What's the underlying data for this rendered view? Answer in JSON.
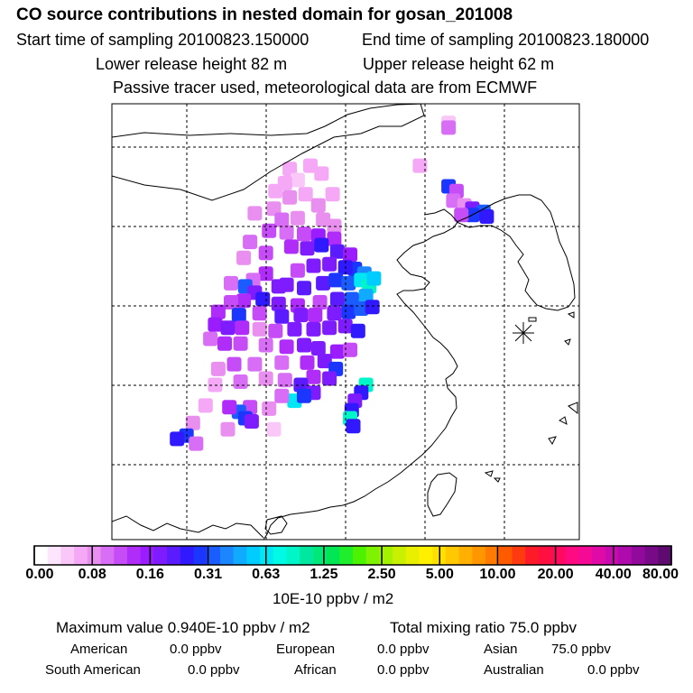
{
  "header": {
    "title": "CO  source contributions in nested domain for gosan_201008",
    "start_label": "Start time of sampling 20100823.150000",
    "end_label": "End time of sampling 20100823.180000",
    "lower_label": "Lower release height   82 m",
    "upper_label": "Upper release height   62 m",
    "subtitle": "Passive tracer used, meteorological data are from ECMWF"
  },
  "chart_data": {
    "type": "heatmap",
    "title": "CO  source contributions in nested domain for gosan_201008",
    "colorbar": {
      "unit": "10E-10 ppbv / m2",
      "tick_labels": [
        "0.00",
        "0.08",
        "0.16",
        "0.31",
        "0.63",
        "1.25",
        "2.50",
        "5.00",
        "10.00",
        "20.00",
        "40.00",
        "80.00"
      ],
      "colors": [
        "#ffffff",
        "#fde6fd",
        "#f9c8f9",
        "#f5a8f5",
        "#e88ff0",
        "#d76ef5",
        "#c64cf7",
        "#b02cf9",
        "#9a1cff",
        "#7f1cff",
        "#5a1cff",
        "#3018ff",
        "#1b37ff",
        "#1b5cff",
        "#1b86ff",
        "#10aaff",
        "#00ccff",
        "#00e6f2",
        "#00fae6",
        "#00f5c8",
        "#00e8a0",
        "#00e87a",
        "#00e654",
        "#20ee2c",
        "#4cf200",
        "#7ef200",
        "#a4f200",
        "#c8f000",
        "#e8f000",
        "#fff000",
        "#ffe000",
        "#ffc800",
        "#ffb000",
        "#ff9600",
        "#ff7a00",
        "#ff5a00",
        "#ff3a10",
        "#ff1a2a",
        "#ff1040",
        "#ff0a60",
        "#ff0a80",
        "#f50a96",
        "#e00aa6",
        "#c80ab0",
        "#ae0aac",
        "#920a9c",
        "#780a88",
        "#5e0a70"
      ]
    },
    "cells": [
      {
        "lon": 126.5,
        "lat": 41.5,
        "v": 0.05
      },
      {
        "lon": 126.5,
        "lat": 41.2,
        "v": 0.1
      },
      {
        "lon": 124.7,
        "lat": 38.8,
        "v": 0.06
      },
      {
        "lon": 126.5,
        "lat": 37.5,
        "v": 0.3
      },
      {
        "lon": 127.0,
        "lat": 37.2,
        "v": 0.12
      },
      {
        "lon": 126.8,
        "lat": 36.6,
        "v": 0.1
      },
      {
        "lon": 127.5,
        "lat": 36.3,
        "v": 0.09
      },
      {
        "lon": 128.0,
        "lat": 36.1,
        "v": 0.2
      },
      {
        "lon": 128.7,
        "lat": 35.9,
        "v": 0.35
      },
      {
        "lon": 128.0,
        "lat": 35.7,
        "v": 0.3
      },
      {
        "lon": 127.3,
        "lat": 35.7,
        "v": 0.12
      },
      {
        "lon": 128.9,
        "lat": 35.6,
        "v": 0.25
      },
      {
        "lon": 116.5,
        "lat": 38.6,
        "v": 0.06
      },
      {
        "lon": 117.8,
        "lat": 38.8,
        "v": 0.06
      },
      {
        "lon": 118.5,
        "lat": 38.3,
        "v": 0.07
      },
      {
        "lon": 117.0,
        "lat": 37.9,
        "v": 0.05
      },
      {
        "lon": 116.2,
        "lat": 37.7,
        "v": 0.06
      },
      {
        "lon": 115.6,
        "lat": 37.2,
        "v": 0.07
      },
      {
        "lon": 116.5,
        "lat": 36.8,
        "v": 0.09
      },
      {
        "lon": 117.5,
        "lat": 37.0,
        "v": 0.07
      },
      {
        "lon": 119.2,
        "lat": 37.0,
        "v": 0.06
      },
      {
        "lon": 118.3,
        "lat": 36.3,
        "v": 0.08
      },
      {
        "lon": 115.5,
        "lat": 36.1,
        "v": 0.09
      },
      {
        "lon": 114.3,
        "lat": 35.8,
        "v": 0.08
      },
      {
        "lon": 116.0,
        "lat": 35.4,
        "v": 0.1
      },
      {
        "lon": 117.0,
        "lat": 35.5,
        "v": 0.09
      },
      {
        "lon": 118.6,
        "lat": 35.4,
        "v": 0.08
      },
      {
        "lon": 119.3,
        "lat": 35.0,
        "v": 0.09
      },
      {
        "lon": 115.2,
        "lat": 34.7,
        "v": 0.12
      },
      {
        "lon": 116.3,
        "lat": 34.6,
        "v": 0.1
      },
      {
        "lon": 117.4,
        "lat": 34.5,
        "v": 0.12
      },
      {
        "lon": 118.3,
        "lat": 34.4,
        "v": 0.16
      },
      {
        "lon": 119.3,
        "lat": 34.2,
        "v": 0.14
      },
      {
        "lon": 114.0,
        "lat": 34.0,
        "v": 0.1
      },
      {
        "lon": 116.6,
        "lat": 33.7,
        "v": 0.14
      },
      {
        "lon": 117.6,
        "lat": 33.6,
        "v": 0.2
      },
      {
        "lon": 118.5,
        "lat": 33.8,
        "v": 0.25
      },
      {
        "lon": 119.5,
        "lat": 33.4,
        "v": 0.22
      },
      {
        "lon": 120.3,
        "lat": 33.2,
        "v": 0.16
      },
      {
        "lon": 115.0,
        "lat": 33.3,
        "v": 0.12
      },
      {
        "lon": 113.6,
        "lat": 33.0,
        "v": 0.08
      },
      {
        "lon": 120.6,
        "lat": 32.3,
        "v": 0.28
      },
      {
        "lon": 121.2,
        "lat": 32.0,
        "v": 0.4
      },
      {
        "lon": 120.0,
        "lat": 32.4,
        "v": 0.25
      },
      {
        "lon": 119.0,
        "lat": 32.6,
        "v": 0.2
      },
      {
        "lon": 118.0,
        "lat": 32.5,
        "v": 0.18
      },
      {
        "lon": 117.0,
        "lat": 32.2,
        "v": 0.12
      },
      {
        "lon": 115.0,
        "lat": 32.0,
        "v": 0.14
      },
      {
        "lon": 114.2,
        "lat": 31.6,
        "v": 0.1
      },
      {
        "lon": 112.8,
        "lat": 31.4,
        "v": 0.1
      },
      {
        "lon": 113.7,
        "lat": 31.2,
        "v": 0.35
      },
      {
        "lon": 114.3,
        "lat": 30.8,
        "v": 0.2
      },
      {
        "lon": 115.8,
        "lat": 31.2,
        "v": 0.2
      },
      {
        "lon": 116.3,
        "lat": 31.3,
        "v": 0.18
      },
      {
        "lon": 117.4,
        "lat": 31.1,
        "v": 0.22
      },
      {
        "lon": 118.6,
        "lat": 31.4,
        "v": 0.22
      },
      {
        "lon": 119.4,
        "lat": 31.6,
        "v": 0.3
      },
      {
        "lon": 120.2,
        "lat": 31.4,
        "v": 0.35
      },
      {
        "lon": 121.0,
        "lat": 31.6,
        "v": 0.7
      },
      {
        "lon": 121.5,
        "lat": 31.2,
        "v": 0.9
      },
      {
        "lon": 121.8,
        "lat": 31.7,
        "v": 0.55
      },
      {
        "lon": 121.3,
        "lat": 30.6,
        "v": 0.5
      },
      {
        "lon": 120.4,
        "lat": 30.4,
        "v": 0.35
      },
      {
        "lon": 119.5,
        "lat": 30.4,
        "v": 0.22
      },
      {
        "lon": 118.4,
        "lat": 30.2,
        "v": 0.12
      },
      {
        "lon": 117.0,
        "lat": 30.0,
        "v": 0.14
      },
      {
        "lon": 115.8,
        "lat": 30.1,
        "v": 0.2
      },
      {
        "lon": 114.8,
        "lat": 30.4,
        "v": 0.25
      },
      {
        "lon": 113.6,
        "lat": 30.3,
        "v": 0.14
      },
      {
        "lon": 112.8,
        "lat": 30.2,
        "v": 0.12
      },
      {
        "lon": 112.0,
        "lat": 29.6,
        "v": 0.14
      },
      {
        "lon": 113.3,
        "lat": 29.4,
        "v": 0.3
      },
      {
        "lon": 114.6,
        "lat": 29.5,
        "v": 0.12
      },
      {
        "lon": 116.0,
        "lat": 29.3,
        "v": 0.22
      },
      {
        "lon": 117.2,
        "lat": 29.4,
        "v": 0.2
      },
      {
        "lon": 118.1,
        "lat": 29.4,
        "v": 0.14
      },
      {
        "lon": 119.3,
        "lat": 29.5,
        "v": 0.2
      },
      {
        "lon": 120.2,
        "lat": 29.6,
        "v": 0.3
      },
      {
        "lon": 121.0,
        "lat": 29.8,
        "v": 0.35
      },
      {
        "lon": 121.7,
        "lat": 29.9,
        "v": 0.25
      },
      {
        "lon": 111.8,
        "lat": 28.8,
        "v": 0.16
      },
      {
        "lon": 112.6,
        "lat": 28.6,
        "v": 0.2
      },
      {
        "lon": 113.5,
        "lat": 28.6,
        "v": 0.14
      },
      {
        "lon": 114.6,
        "lat": 28.5,
        "v": 0.08
      },
      {
        "lon": 115.6,
        "lat": 28.4,
        "v": 0.12
      },
      {
        "lon": 116.8,
        "lat": 28.5,
        "v": 0.2
      },
      {
        "lon": 118.0,
        "lat": 28.5,
        "v": 0.18
      },
      {
        "lon": 119.0,
        "lat": 28.6,
        "v": 0.2
      },
      {
        "lon": 120.0,
        "lat": 28.7,
        "v": 0.2
      },
      {
        "lon": 120.8,
        "lat": 28.4,
        "v": 0.25
      },
      {
        "lon": 111.5,
        "lat": 27.9,
        "v": 0.1
      },
      {
        "lon": 112.4,
        "lat": 27.6,
        "v": 0.14
      },
      {
        "lon": 113.4,
        "lat": 27.6,
        "v": 0.12
      },
      {
        "lon": 115.0,
        "lat": 27.5,
        "v": 0.1
      },
      {
        "lon": 116.3,
        "lat": 27.4,
        "v": 0.14
      },
      {
        "lon": 117.4,
        "lat": 27.5,
        "v": 0.18
      },
      {
        "lon": 118.3,
        "lat": 27.3,
        "v": 0.2
      },
      {
        "lon": 119.5,
        "lat": 27.1,
        "v": 0.16
      },
      {
        "lon": 120.3,
        "lat": 27.2,
        "v": 0.12
      },
      {
        "lon": 118.7,
        "lat": 26.5,
        "v": 0.2
      },
      {
        "lon": 117.6,
        "lat": 26.4,
        "v": 0.14
      },
      {
        "lon": 116.0,
        "lat": 26.4,
        "v": 0.1
      },
      {
        "lon": 114.3,
        "lat": 26.3,
        "v": 0.1
      },
      {
        "lon": 113.0,
        "lat": 26.3,
        "v": 0.12
      },
      {
        "lon": 112.0,
        "lat": 26.0,
        "v": 0.08
      },
      {
        "lon": 119.4,
        "lat": 26.0,
        "v": 0.3
      },
      {
        "lon": 118.0,
        "lat": 25.5,
        "v": 0.14
      },
      {
        "lon": 119.0,
        "lat": 25.4,
        "v": 0.2
      },
      {
        "lon": 117.2,
        "lat": 25.0,
        "v": 0.22
      },
      {
        "lon": 116.2,
        "lat": 25.3,
        "v": 0.1
      },
      {
        "lon": 115.0,
        "lat": 25.4,
        "v": 0.08
      },
      {
        "lon": 113.4,
        "lat": 25.2,
        "v": 0.1
      },
      {
        "lon": 111.8,
        "lat": 25.0,
        "v": 0.06
      },
      {
        "lon": 121.3,
        "lat": 25.0,
        "v": 0.9
      },
      {
        "lon": 121.0,
        "lat": 24.5,
        "v": 0.25
      },
      {
        "lon": 120.6,
        "lat": 24.0,
        "v": 0.2
      },
      {
        "lon": 120.4,
        "lat": 23.4,
        "v": 0.25
      },
      {
        "lon": 120.3,
        "lat": 22.9,
        "v": 0.9
      },
      {
        "lon": 120.5,
        "lat": 22.4,
        "v": 0.25
      },
      {
        "lon": 118.0,
        "lat": 24.5,
        "v": 0.2
      },
      {
        "lon": 116.8,
        "lat": 24.0,
        "v": 0.7
      },
      {
        "lon": 117.4,
        "lat": 24.3,
        "v": 0.3
      },
      {
        "lon": 116.0,
        "lat": 24.3,
        "v": 0.1
      },
      {
        "lon": 115.2,
        "lat": 23.5,
        "v": 0.08
      },
      {
        "lon": 114.0,
        "lat": 23.6,
        "v": 0.12
      },
      {
        "lon": 113.3,
        "lat": 23.3,
        "v": 0.35
      },
      {
        "lon": 113.7,
        "lat": 22.9,
        "v": 0.3
      },
      {
        "lon": 114.1,
        "lat": 22.7,
        "v": 0.2
      },
      {
        "lon": 112.7,
        "lat": 23.6,
        "v": 0.14
      },
      {
        "lon": 111.2,
        "lat": 23.7,
        "v": 0.06
      },
      {
        "lon": 110.4,
        "lat": 22.6,
        "v": 0.08
      },
      {
        "lon": 110.0,
        "lat": 21.8,
        "v": 0.3
      },
      {
        "lon": 109.4,
        "lat": 21.6,
        "v": 0.25
      },
      {
        "lon": 110.6,
        "lat": 21.3,
        "v": 0.1
      },
      {
        "lon": 112.6,
        "lat": 22.2,
        "v": 0.08
      },
      {
        "lon": 115.5,
        "lat": 22.2,
        "v": 0.04
      }
    ]
  },
  "summary": {
    "max_text": "Maximum value  0.940E-10 ppbv / m2",
    "total_text": "Total mixing ratio      75.0 ppbv",
    "sources": [
      {
        "name": "American",
        "value": "0.0 ppbv"
      },
      {
        "name": "European",
        "value": "0.0 ppbv"
      },
      {
        "name": "Asian",
        "value": "75.0 ppbv"
      },
      {
        "name": "South American",
        "value": "0.0 ppbv"
      },
      {
        "name": "African",
        "value": "0.0 ppbv"
      },
      {
        "name": "Australian",
        "value": "0.0 ppbv"
      }
    ]
  }
}
